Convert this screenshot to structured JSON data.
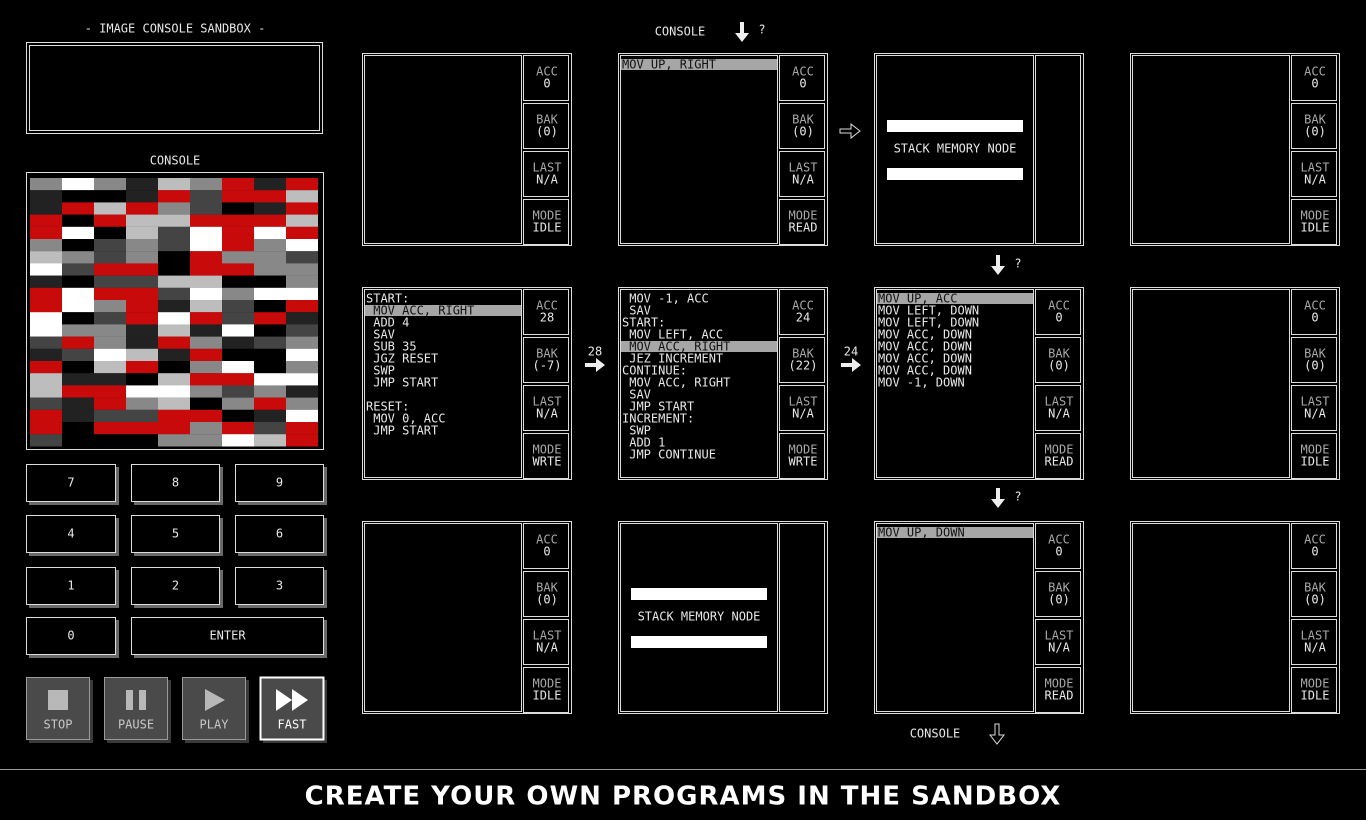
{
  "sidebar": {
    "title": "- IMAGE CONSOLE SANDBOX -",
    "console_label": "CONSOLE",
    "keypad": [
      "7",
      "8",
      "9",
      "4",
      "5",
      "6",
      "1",
      "2",
      "3",
      "0",
      "ENTER"
    ],
    "controls": [
      "STOP",
      "PAUSE",
      "PLAY",
      "FAST"
    ]
  },
  "top_input": {
    "label": "CONSOLE",
    "hint": "?"
  },
  "bottom_output": {
    "label": "CONSOLE"
  },
  "nodes": [
    {
      "type": "exec",
      "code": [],
      "registers": [
        {
          "name": "ACC",
          "value": 0
        },
        {
          "name": "BAK",
          "value": "(0)"
        },
        {
          "name": "LAST",
          "value": "N/A"
        },
        {
          "name": "MODE",
          "value": "IDLE"
        }
      ]
    },
    {
      "type": "exec",
      "code": [
        "MOV UP, RIGHT"
      ],
      "active_line": 0,
      "registers": [
        {
          "name": "ACC",
          "value": 0
        },
        {
          "name": "BAK",
          "value": "(0)"
        },
        {
          "name": "LAST",
          "value": "N/A"
        },
        {
          "name": "MODE",
          "value": "READ"
        }
      ]
    },
    {
      "type": "stack",
      "label": "STACK MEMORY NODE"
    },
    {
      "type": "exec",
      "code": [],
      "registers": [
        {
          "name": "ACC",
          "value": 0
        },
        {
          "name": "BAK",
          "value": "(0)"
        },
        {
          "name": "LAST",
          "value": "N/A"
        },
        {
          "name": "MODE",
          "value": "IDLE"
        }
      ]
    },
    {
      "type": "exec",
      "code": [
        "START:",
        " MOV ACC, RIGHT",
        " ADD 4",
        " SAV",
        " SUB 35",
        " JGZ RESET",
        " SWP",
        " JMP START",
        null,
        "RESET:",
        " MOV 0, ACC",
        " JMP START"
      ],
      "active_line": 1,
      "registers": [
        {
          "name": "ACC",
          "value": 28
        },
        {
          "name": "BAK",
          "value": "(-7)"
        },
        {
          "name": "LAST",
          "value": "N/A"
        },
        {
          "name": "MODE",
          "value": "WRTE"
        }
      ]
    },
    {
      "type": "exec",
      "code": [
        " MOV -1, ACC",
        " SAV",
        "START:",
        " MOV LEFT, ACC",
        " MOV ACC, RIGHT",
        " JEZ INCREMENT",
        "CONTINUE:",
        " MOV ACC, RIGHT",
        " SAV",
        " JMP START",
        "INCREMENT:",
        " SWP",
        " ADD 1",
        " JMP CONTINUE"
      ],
      "active_line": 4,
      "registers": [
        {
          "name": "ACC",
          "value": 24
        },
        {
          "name": "BAK",
          "value": "(22)"
        },
        {
          "name": "LAST",
          "value": "N/A"
        },
        {
          "name": "MODE",
          "value": "WRTE"
        }
      ]
    },
    {
      "type": "exec",
      "code": [
        "MOV UP, ACC",
        "MOV LEFT, DOWN",
        "MOV LEFT, DOWN",
        "MOV ACC, DOWN",
        "MOV ACC, DOWN",
        "MOV ACC, DOWN",
        "MOV ACC, DOWN",
        "MOV -1, DOWN"
      ],
      "active_line": 0,
      "registers": [
        {
          "name": "ACC",
          "value": 0
        },
        {
          "name": "BAK",
          "value": "(0)"
        },
        {
          "name": "LAST",
          "value": "N/A"
        },
        {
          "name": "MODE",
          "value": "READ"
        }
      ]
    },
    {
      "type": "exec",
      "code": [],
      "registers": [
        {
          "name": "ACC",
          "value": 0
        },
        {
          "name": "BAK",
          "value": "(0)"
        },
        {
          "name": "LAST",
          "value": "N/A"
        },
        {
          "name": "MODE",
          "value": "IDLE"
        }
      ]
    },
    {
      "type": "exec",
      "code": [],
      "registers": [
        {
          "name": "ACC",
          "value": 0
        },
        {
          "name": "BAK",
          "value": "(0)"
        },
        {
          "name": "LAST",
          "value": "N/A"
        },
        {
          "name": "MODE",
          "value": "IDLE"
        }
      ]
    },
    {
      "type": "stack",
      "label": "STACK MEMORY NODE"
    },
    {
      "type": "exec",
      "code": [
        "MOV UP, DOWN"
      ],
      "active_line": 0,
      "registers": [
        {
          "name": "ACC",
          "value": 0
        },
        {
          "name": "BAK",
          "value": "(0)"
        },
        {
          "name": "LAST",
          "value": "N/A"
        },
        {
          "name": "MODE",
          "value": "READ"
        }
      ]
    },
    {
      "type": "exec",
      "code": [],
      "registers": [
        {
          "name": "ACC",
          "value": 0
        },
        {
          "name": "BAK",
          "value": "(0)"
        },
        {
          "name": "LAST",
          "value": "N/A"
        },
        {
          "name": "MODE",
          "value": "IDLE"
        }
      ]
    }
  ],
  "links": [
    {
      "hint": "?"
    },
    {
      "value": 28
    },
    {
      "value": 24
    },
    {
      "hint": "?"
    }
  ],
  "footer": "CREATE YOUR OWN PROGRAMS IN THE SANDBOX"
}
